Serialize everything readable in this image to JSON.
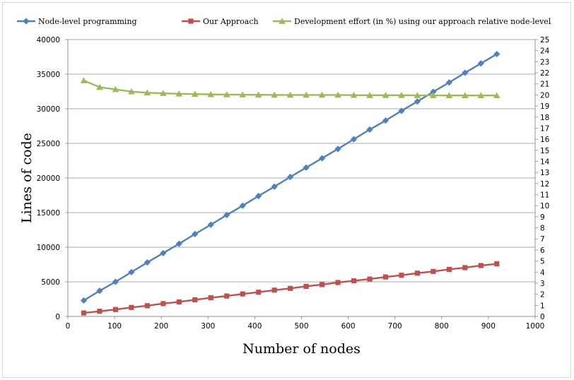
{
  "chart_data": {
    "type": "line",
    "title": "",
    "xlabel": "Number of nodes",
    "ylabel": "Lines of code",
    "y2label": "",
    "xlim": [
      0,
      1000
    ],
    "ylim": [
      0,
      40000
    ],
    "y2lim": [
      0,
      25
    ],
    "xticks": [
      0,
      100,
      200,
      300,
      400,
      500,
      600,
      700,
      800,
      900,
      1000
    ],
    "yticks": [
      0,
      5000,
      10000,
      15000,
      20000,
      25000,
      30000,
      35000,
      40000
    ],
    "y2ticks": [
      0,
      1,
      2,
      3,
      4,
      5,
      6,
      7,
      8,
      9,
      10,
      11,
      12,
      13,
      14,
      15,
      16,
      17,
      18,
      19,
      20,
      21,
      22,
      23,
      24,
      25
    ],
    "grid": "horizontal",
    "legend_position": "top",
    "x": [
      34,
      68,
      102,
      136,
      170,
      204,
      238,
      272,
      306,
      340,
      374,
      408,
      442,
      476,
      510,
      544,
      578,
      612,
      646,
      680,
      714,
      748,
      782,
      816,
      850,
      884,
      918
    ],
    "series": [
      {
        "name": "Node-level programming",
        "axis": "left",
        "color": "#4f81bd",
        "marker": "diamond",
        "values": [
          2300,
          3700,
          5000,
          6400,
          7800,
          9150,
          10500,
          11900,
          13250,
          14650,
          16000,
          17400,
          18750,
          20150,
          21500,
          22850,
          24200,
          25600,
          27000,
          28300,
          29700,
          31050,
          32450,
          33800,
          35200,
          36550,
          37900
        ]
      },
      {
        "name": "Our Approach",
        "axis": "left",
        "color": "#c0504d",
        "marker": "square",
        "values": [
          500,
          750,
          1000,
          1300,
          1550,
          1850,
          2100,
          2400,
          2700,
          2950,
          3250,
          3500,
          3800,
          4050,
          4350,
          4600,
          4900,
          5150,
          5400,
          5700,
          5950,
          6250,
          6500,
          6800,
          7050,
          7350,
          7600
        ]
      },
      {
        "name": "Development effort (in %) using our approach relative node-level",
        "axis": "right",
        "color": "#9bbb59",
        "marker": "triangle",
        "values": [
          21.3,
          20.7,
          20.5,
          20.3,
          20.2,
          20.15,
          20.1,
          20.08,
          20.05,
          20.03,
          20.02,
          20.01,
          20.0,
          20.0,
          20.0,
          20.0,
          20.0,
          19.98,
          19.97,
          19.97,
          19.97,
          19.96,
          19.96,
          19.95,
          19.95,
          19.95,
          19.95
        ]
      }
    ]
  }
}
